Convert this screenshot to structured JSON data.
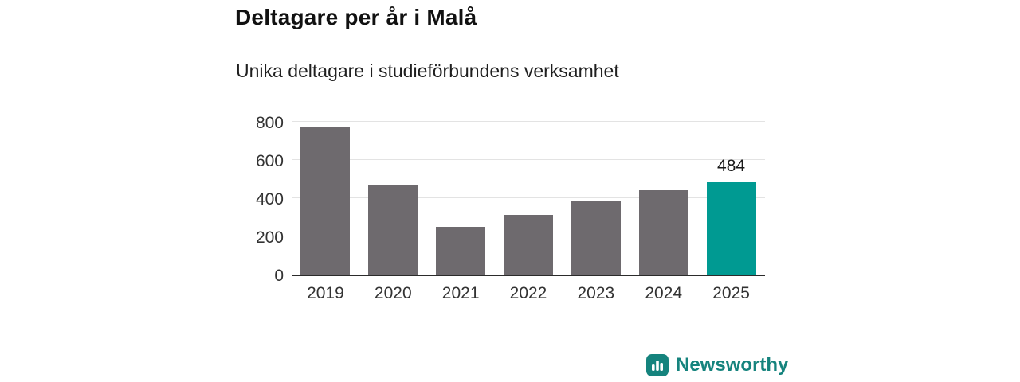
{
  "title": "Deltagare per år i Malå",
  "subtitle": "Unika deltagare i studieförbundens verksamhet",
  "chart_data": {
    "type": "bar",
    "title": "Deltagare per år i Malå",
    "subtitle": "Unika deltagare i studieförbundens verksamhet",
    "categories": [
      "2019",
      "2020",
      "2021",
      "2022",
      "2023",
      "2024",
      "2025"
    ],
    "values": [
      770,
      470,
      248,
      312,
      385,
      443,
      484
    ],
    "xlabel": "",
    "ylabel": "",
    "ylim": [
      0,
      800
    ],
    "yticks": [
      0,
      200,
      400,
      600,
      800
    ],
    "grid": true,
    "legend": false,
    "bar_color": "#6e6a6e",
    "highlight_color": "#009a92",
    "highlight_index": 6,
    "annotations": [
      {
        "index": 6,
        "text": "484"
      }
    ]
  },
  "branding": {
    "name": "Newsworthy",
    "color": "#15837d",
    "icon": "bar-chart-badge-icon"
  }
}
